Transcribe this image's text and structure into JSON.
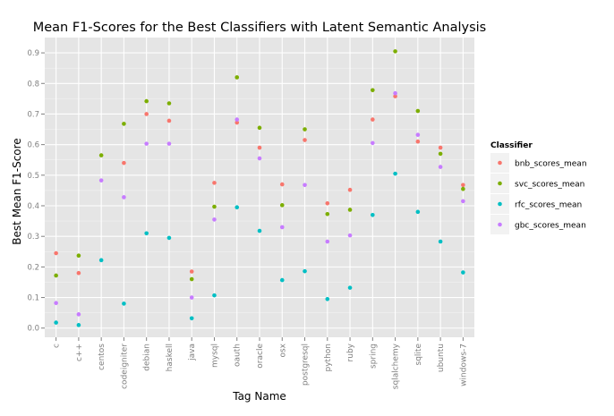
{
  "chart_data": {
    "type": "scatter",
    "title": "Mean F1-Scores for the Best Classifiers with Latent Semantic Analysis",
    "xlabel": "Tag Name",
    "ylabel": "Best Mean F1-Score",
    "ylim": [
      -0.03,
      0.95
    ],
    "yticks": [
      0.0,
      0.1,
      0.2,
      0.3,
      0.4,
      0.5,
      0.6,
      0.7,
      0.8,
      0.9
    ],
    "ytick_labels": [
      "0.0",
      "0.1",
      "0.2",
      "0.3",
      "0.4",
      "0.5",
      "0.6",
      "0.7",
      "0.8",
      "0.9"
    ],
    "grid": true,
    "legend_position": "right",
    "legend_title": "Classifier",
    "categories": [
      "c",
      "c++",
      "centos",
      "codeigniter",
      "debian",
      "haskell",
      "java",
      "mysql",
      "oauth",
      "oracle",
      "osx",
      "postgresql",
      "python",
      "ruby",
      "spring",
      "sqlalchemy",
      "sqlite",
      "ubuntu",
      "windows-7"
    ],
    "series": [
      {
        "name": "bnb_scores_mean",
        "color": "#F8766D",
        "values": [
          0.245,
          0.18,
          null,
          0.54,
          0.7,
          0.678,
          0.185,
          0.475,
          0.672,
          0.59,
          0.47,
          0.615,
          0.408,
          0.452,
          0.682,
          0.758,
          0.61,
          0.59,
          0.468
        ]
      },
      {
        "name": "svc_scores_mean",
        "color": "#7CAE00",
        "values": [
          0.172,
          0.237,
          0.565,
          0.668,
          0.742,
          0.735,
          0.16,
          0.397,
          0.82,
          0.655,
          0.402,
          0.65,
          0.373,
          0.387,
          0.778,
          0.905,
          0.71,
          0.57,
          0.455
        ]
      },
      {
        "name": "rfc_scores_mean",
        "color": "#00BFC4",
        "values": [
          0.018,
          0.01,
          0.222,
          0.08,
          0.31,
          0.295,
          0.032,
          0.107,
          0.395,
          0.318,
          0.157,
          0.186,
          0.095,
          0.132,
          0.37,
          0.505,
          0.38,
          0.283,
          0.182
        ]
      },
      {
        "name": "gbc_scores_mean",
        "color": "#C77CFF",
        "values": [
          0.082,
          0.045,
          0.483,
          0.428,
          0.603,
          0.603,
          0.1,
          0.355,
          0.682,
          0.555,
          0.33,
          0.468,
          0.283,
          0.303,
          0.605,
          0.768,
          0.632,
          0.527,
          0.415
        ]
      }
    ]
  },
  "colors": {
    "panel_background": "#E5E5E5",
    "grid_major": "#FFFFFF",
    "grid_minor": "#F2F2F2",
    "tick_text": "#7F7F7F"
  }
}
